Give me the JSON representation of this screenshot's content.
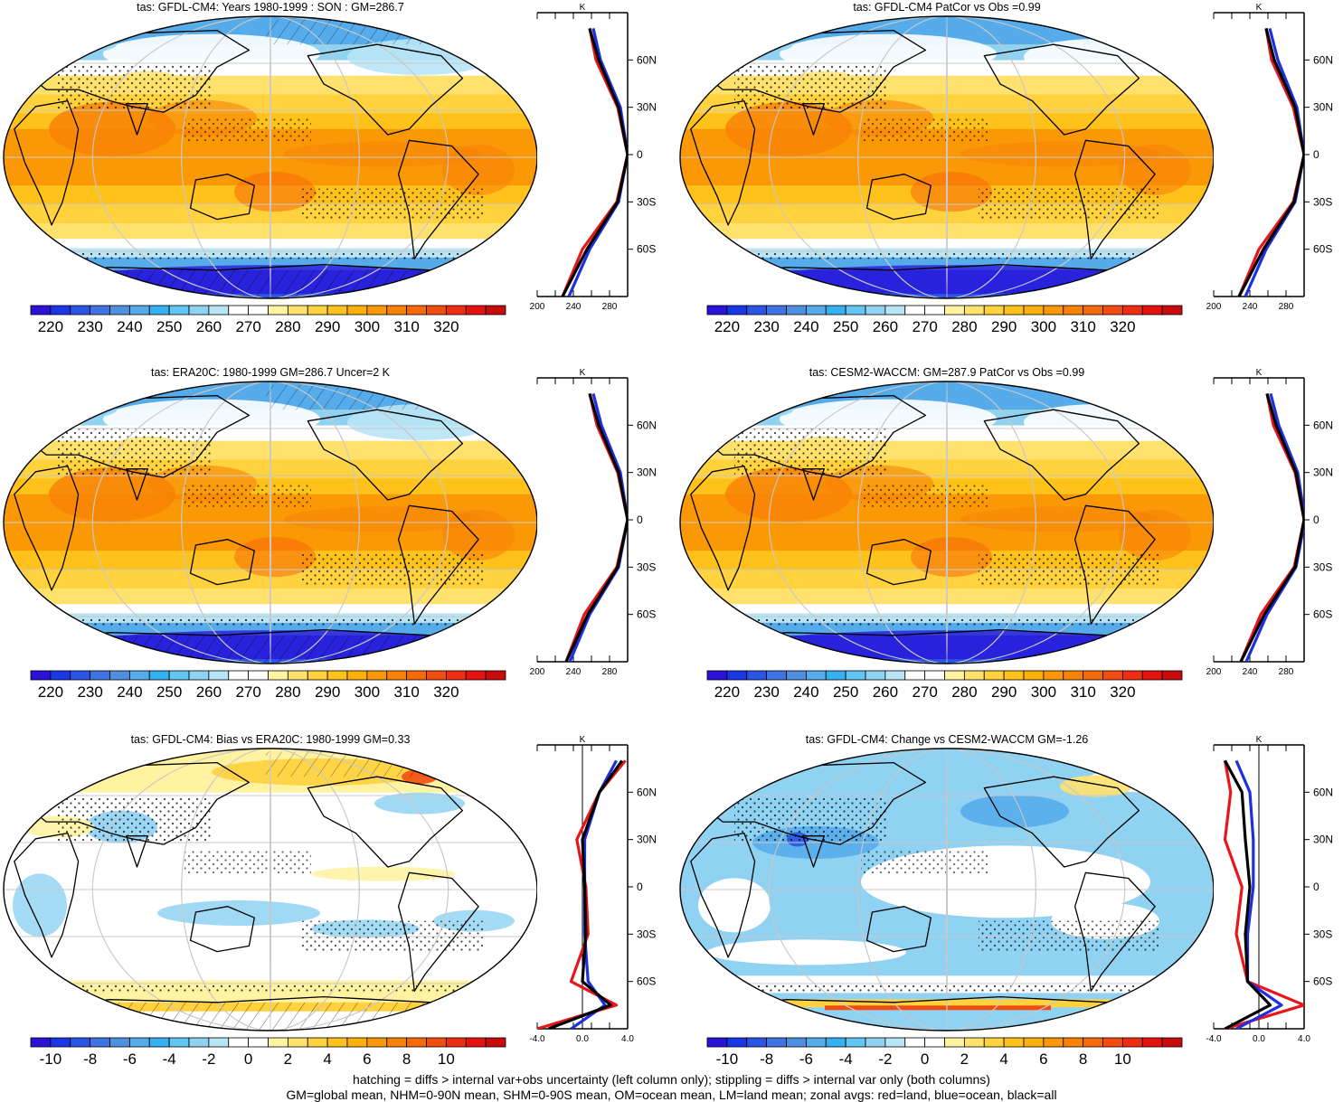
{
  "panels": [
    {
      "title": "tas: GFDL-CM4: Years 1980-1999 : SON : GM=286.7",
      "kind": "abs",
      "hatch": true,
      "stipple": true,
      "profile_variant": 0
    },
    {
      "title": "tas: GFDL-CM4 PatCor vs Obs =0.99",
      "kind": "abs",
      "hatch": false,
      "stipple": true,
      "profile_variant": 1
    },
    {
      "title": "tas: ERA20C: 1980-1999 GM=286.7 Uncer=2 K",
      "kind": "abs",
      "hatch": true,
      "stipple": true,
      "profile_variant": 2
    },
    {
      "title": "tas: CESM2-WACCM: GM=287.9 PatCor vs Obs =0.99",
      "kind": "abs",
      "hatch": false,
      "stipple": true,
      "profile_variant": 3
    },
    {
      "title": "tas: GFDL-CM4: Bias vs ERA20C: 1980-1999  GM=0.33",
      "kind": "bias",
      "hatch": true,
      "stipple": true,
      "profile_variant": 4
    },
    {
      "title": "tas: GFDL-CM4: Change vs CESM2-WACCM GM=-1.26",
      "kind": "change",
      "hatch": false,
      "stipple": true,
      "profile_variant": 5
    }
  ],
  "colorbars": {
    "abs": {
      "labels": [
        "220",
        "230",
        "240",
        "250",
        "260",
        "270",
        "280",
        "290",
        "300",
        "310",
        "320"
      ],
      "colors": [
        "#2a12d8",
        "#1a37e6",
        "#2a55e6",
        "#3f74e2",
        "#4f8fe0",
        "#56acea",
        "#36b0ef",
        "#62c6f2",
        "#8fd2f2",
        "#b8e4f6",
        "#ffffff",
        "#ffffff",
        "#fff3a2",
        "#ffe26e",
        "#ffd23e",
        "#fec21b",
        "#fdb006",
        "#fb9806",
        "#f88206",
        "#f56a0a",
        "#f34c10",
        "#ef2d12",
        "#e4130f",
        "#c80c0c"
      ]
    },
    "diff": {
      "labels": [
        "-10",
        "-8",
        "-6",
        "-4",
        "-2",
        "0",
        "2",
        "4",
        "6",
        "8",
        "10"
      ],
      "colors": [
        "#2a12d8",
        "#1a37e6",
        "#2a55e6",
        "#3f74e2",
        "#4f8fe0",
        "#56acea",
        "#36b0ef",
        "#62c6f2",
        "#8fd2f2",
        "#b8e4f6",
        "#ffffff",
        "#ffffff",
        "#fff3a2",
        "#ffe26e",
        "#ffd23e",
        "#fec21b",
        "#fdb006",
        "#fb9806",
        "#f88206",
        "#f56a0a",
        "#f34c10",
        "#ef2d12",
        "#e4130f",
        "#c80c0c"
      ]
    }
  },
  "profile_axes": {
    "unit": "K",
    "lat_labels": [
      "60N",
      "30N",
      "0",
      "30S",
      "60S"
    ],
    "lat_values": [
      60,
      30,
      0,
      -30,
      -60
    ],
    "abs_x_labels": [
      "200",
      "240",
      "280"
    ],
    "abs_x_values": [
      200,
      240,
      280
    ],
    "abs_xlim": [
      200,
      300
    ],
    "diff_x_labels": [
      "-4.0",
      "0.0",
      "4.0"
    ],
    "diff_x_values": [
      -4,
      0,
      4
    ],
    "diff_xlim": [
      -4,
      4
    ]
  },
  "series_colors": {
    "land": "#e8161a",
    "ocean": "#1f2fe0",
    "all": "#000000"
  },
  "chart_data": [
    {
      "type": "heatmap",
      "title": "tas: GFDL-CM4: Years 1980-1999 : SON : GM=286.7",
      "colorbar_ticks": [
        220,
        230,
        240,
        250,
        260,
        270,
        280,
        290,
        300,
        310,
        320
      ],
      "zonal_profile": {
        "lat": [
          -90,
          -60,
          -30,
          0,
          30,
          60,
          80
        ],
        "land": [
          228,
          250,
          288,
          300,
          289,
          265,
          258
        ],
        "ocean": [
          235,
          258,
          290,
          300,
          292,
          270,
          262
        ],
        "all": [
          228,
          255,
          289,
          300,
          290,
          268,
          258
        ]
      }
    },
    {
      "type": "heatmap",
      "title": "tas: GFDL-CM4 PatCor vs Obs =0.99",
      "colorbar_ticks": [
        220,
        230,
        240,
        250,
        260,
        270,
        280,
        290,
        300,
        310,
        320
      ],
      "zonal_profile": {
        "lat": [
          -90,
          -60,
          -30,
          0,
          30,
          60,
          80
        ],
        "land": [
          228,
          250,
          288,
          300,
          288,
          264,
          258
        ],
        "ocean": [
          235,
          258,
          290,
          300,
          292,
          271,
          262
        ],
        "all": [
          228,
          255,
          289,
          300,
          290,
          267,
          258
        ]
      }
    },
    {
      "type": "heatmap",
      "title": "tas: ERA20C: 1980-1999 GM=286.7 Uncer=2 K",
      "colorbar_ticks": [
        220,
        230,
        240,
        250,
        260,
        270,
        280,
        290,
        300,
        310,
        320
      ],
      "zonal_profile": {
        "lat": [
          -90,
          -60,
          -30,
          0,
          30,
          60,
          80
        ],
        "land": [
          232,
          252,
          288,
          300,
          289,
          266,
          258
        ],
        "ocean": [
          236,
          258,
          290,
          300,
          292,
          271,
          262
        ],
        "all": [
          232,
          256,
          289,
          300,
          290,
          268,
          258
        ]
      }
    },
    {
      "type": "heatmap",
      "title": "tas: CESM2-WACCM: GM=287.9 PatCor vs Obs =0.99",
      "colorbar_ticks": [
        220,
        230,
        240,
        250,
        260,
        270,
        280,
        290,
        300,
        310,
        320
      ],
      "zonal_profile": {
        "lat": [
          -90,
          -60,
          -30,
          0,
          30,
          60,
          80
        ],
        "land": [
          230,
          252,
          289,
          300,
          290,
          266,
          259
        ],
        "ocean": [
          236,
          259,
          291,
          301,
          293,
          272,
          263
        ],
        "all": [
          230,
          256,
          290,
          300,
          291,
          269,
          259
        ]
      }
    },
    {
      "type": "heatmap",
      "title": "tas: GFDL-CM4: Bias vs ERA20C: 1980-1999  GM=0.33",
      "colorbar_ticks": [
        -10,
        -8,
        -6,
        -4,
        -2,
        0,
        2,
        4,
        6,
        8,
        10
      ],
      "zonal_profile": {
        "lat": [
          -90,
          -75,
          -60,
          -30,
          0,
          30,
          60,
          80
        ],
        "land": [
          -4,
          3,
          -1,
          0.5,
          0.3,
          -0.5,
          1.5,
          3.8
        ],
        "ocean": [
          -1,
          2,
          0.5,
          0.2,
          0.2,
          0.2,
          1.5,
          3
        ],
        "all": [
          -3,
          2.5,
          0,
          0.3,
          0.2,
          0,
          1.5,
          3.5
        ]
      }
    },
    {
      "type": "heatmap",
      "title": "tas: GFDL-CM4: Change vs CESM2-WACCM GM=-1.26",
      "colorbar_ticks": [
        -10,
        -8,
        -6,
        -4,
        -2,
        0,
        2,
        4,
        6,
        8,
        10
      ],
      "zonal_profile": {
        "lat": [
          -90,
          -75,
          -60,
          -30,
          0,
          30,
          60,
          80
        ],
        "land": [
          -3,
          4,
          -1,
          -2,
          -1.5,
          -3,
          -2.5,
          -3
        ],
        "ocean": [
          -2,
          2,
          -1,
          -1,
          -0.5,
          -0.5,
          -0.8,
          -2
        ],
        "all": [
          -3,
          1,
          -1,
          -1.2,
          -0.8,
          -1.2,
          -1.5,
          -3
        ]
      }
    }
  ],
  "footer": {
    "line1": "hatching = diffs > internal var+obs uncertainty (left column only); stippling = diffs > internal var only (both columns)",
    "line2": "GM=global mean, NHM=0-90N mean, SHM=0-90S mean, OM=ocean mean, LM=land mean; zonal avgs: red=land, blue=ocean, black=all"
  }
}
